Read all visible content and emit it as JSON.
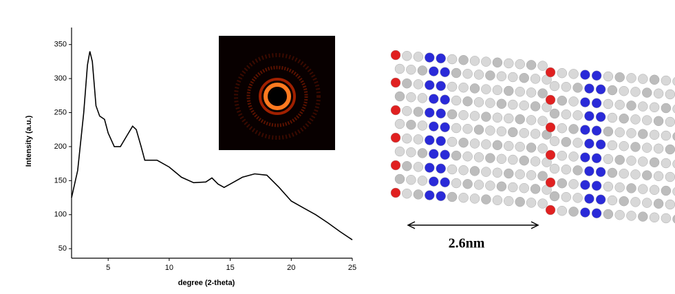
{
  "chart_data": {
    "type": "line",
    "xlabel": "degree (2-theta)",
    "ylabel": "Intensity (a.u.)",
    "x": [
      2,
      2.5,
      3,
      3.3,
      3.5,
      3.7,
      4,
      4.3,
      4.7,
      5,
      5.5,
      6,
      6.5,
      7,
      7.3,
      7.7,
      8,
      9,
      10,
      11,
      12,
      13,
      13.5,
      14,
      14.5,
      15,
      16,
      17,
      18,
      19,
      20,
      21,
      22,
      23,
      24,
      25
    ],
    "values": [
      125,
      165,
      250,
      320,
      340,
      325,
      260,
      245,
      240,
      220,
      200,
      200,
      215,
      230,
      225,
      200,
      180,
      180,
      170,
      155,
      147,
      148,
      154,
      145,
      140,
      145,
      155,
      160,
      158,
      140,
      120,
      110,
      100,
      88,
      75,
      63
    ],
    "color": "#000000",
    "xlim": [
      2,
      25
    ],
    "xticks": [
      5,
      10,
      15,
      20,
      25
    ],
    "ylim": [
      36,
      375
    ],
    "yticks": [
      50,
      100,
      150,
      200,
      250,
      300,
      350
    ],
    "annotation": "2.6nm"
  }
}
